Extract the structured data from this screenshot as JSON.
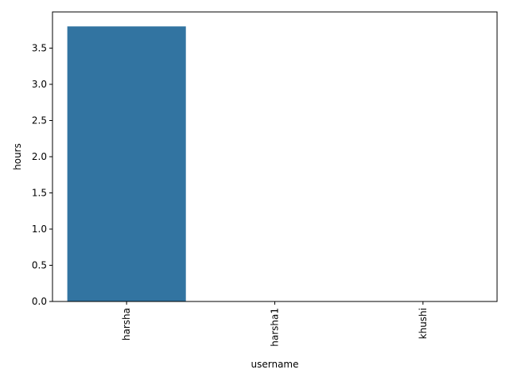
{
  "chart_data": {
    "type": "bar",
    "categories": [
      "harsha",
      "harsha1",
      "khushi"
    ],
    "values": [
      3.8,
      0,
      0
    ],
    "xlabel": "username",
    "ylabel": "hours",
    "ylim": [
      0,
      4.0
    ],
    "yticks": [
      "0.0",
      "0.5",
      "1.0",
      "1.5",
      "2.0",
      "2.5",
      "3.0",
      "3.5"
    ],
    "bar_color": "#3274a1",
    "grid": false,
    "legend": "none"
  }
}
